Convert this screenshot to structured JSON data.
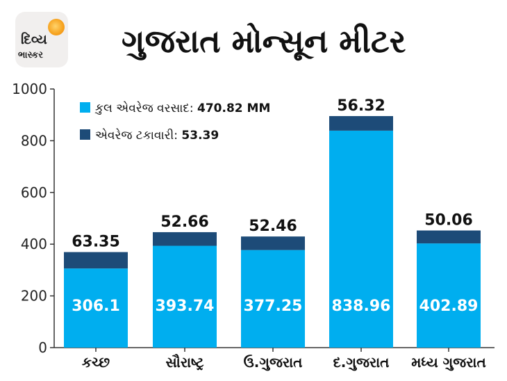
{
  "logo": {
    "line1": "દિવ્ય",
    "line2": "ભાસ્કર"
  },
  "title": "ગુજરાત મોન્સૂન મીટર",
  "chart_data": {
    "type": "bar",
    "stacked": true,
    "categories": [
      "કચ્છ",
      "સૌરાષ્ટ્ર",
      "ઉ.ગુજરાત",
      "દ.ગુજરાત",
      "મધ્ય ગુજરાત"
    ],
    "series": [
      {
        "name": "કુલ એવરેજ વરસાદ",
        "color": "#00aeef",
        "values": [
          306.1,
          393.74,
          377.25,
          838.96,
          402.89
        ]
      },
      {
        "name": "એવરેજ ટકાવારી",
        "color": "#1d4b78",
        "values": [
          63.35,
          52.66,
          52.46,
          56.32,
          50.06
        ]
      }
    ],
    "legend": [
      {
        "label": "કુલ એવરેજ વરસાદ: ",
        "value": "470.82 MM",
        "color": "#00aeef"
      },
      {
        "label": "એવરેજ ટકાવારી: ",
        "value": "53.39",
        "color": "#1d4b78"
      }
    ],
    "legend_position": "top-left",
    "ylim": [
      0,
      1000
    ],
    "yticks": [
      0,
      200,
      400,
      600,
      800,
      1000
    ],
    "grid": false
  }
}
